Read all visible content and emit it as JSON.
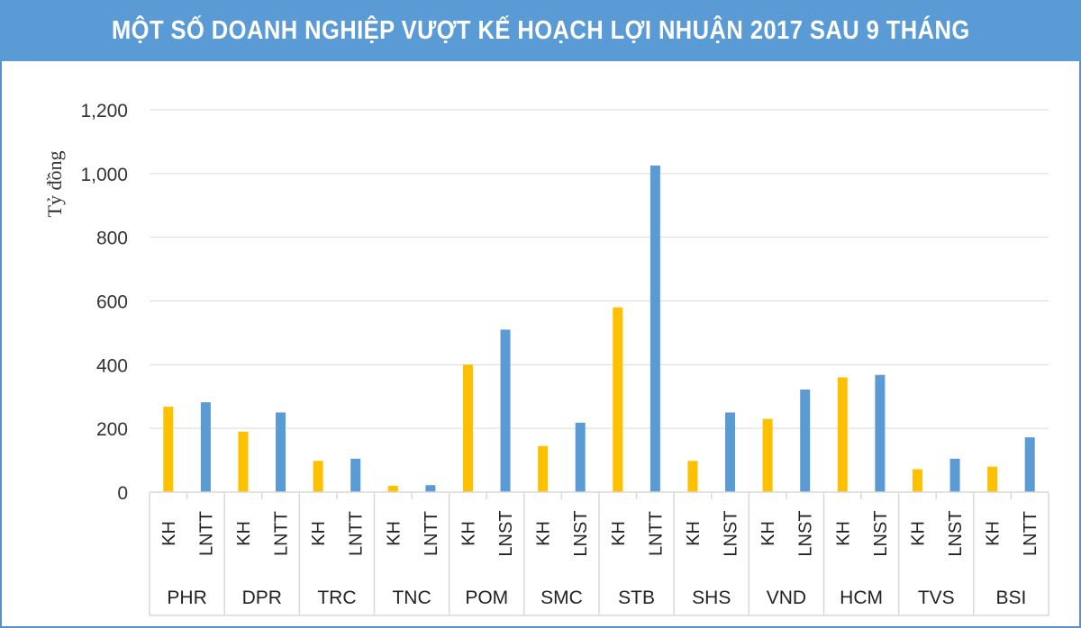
{
  "title": "MỘT SỐ DOANH NGHIỆP VƯỢT KẾ HOẠCH LỢI NHUẬN 2017 SAU 9 THÁNG",
  "colors": {
    "title_bg": "#5b9bd5",
    "plan_bar": "#ffc000",
    "actual_bar": "#5b9bd5",
    "grid": "#d9d9d9",
    "axis_text": "#333333"
  },
  "chart_data": {
    "type": "bar",
    "title": "MỘT SỐ DOANH NGHIỆP VƯỢT KẾ HOẠCH LỢI NHUẬN 2017 SAU 9 THÁNG",
    "ylabel": "Tỷ đồng",
    "xlabel": "",
    "ylim": [
      0,
      1200
    ],
    "yticks": [
      0,
      200,
      400,
      600,
      800,
      1000,
      1200
    ],
    "ytick_labels": [
      "0",
      "200",
      "400",
      "600",
      "800",
      "1,000",
      "1,200"
    ],
    "grid": true,
    "legend": "none",
    "groups": [
      {
        "company": "PHR",
        "bars": [
          {
            "label": "KH",
            "value": 268,
            "kind": "plan"
          },
          {
            "label": "LNTT",
            "value": 282,
            "kind": "actual"
          }
        ]
      },
      {
        "company": "DPR",
        "bars": [
          {
            "label": "KH",
            "value": 190,
            "kind": "plan"
          },
          {
            "label": "LNTT",
            "value": 250,
            "kind": "actual"
          }
        ]
      },
      {
        "company": "TRC",
        "bars": [
          {
            "label": "KH",
            "value": 98,
            "kind": "plan"
          },
          {
            "label": "LNTT",
            "value": 105,
            "kind": "actual"
          }
        ]
      },
      {
        "company": "TNC",
        "bars": [
          {
            "label": "KH",
            "value": 20,
            "kind": "plan"
          },
          {
            "label": "LNTT",
            "value": 22,
            "kind": "actual"
          }
        ]
      },
      {
        "company": "POM",
        "bars": [
          {
            "label": "KH",
            "value": 400,
            "kind": "plan"
          },
          {
            "label": "LNST",
            "value": 510,
            "kind": "actual"
          }
        ]
      },
      {
        "company": "SMC",
        "bars": [
          {
            "label": "KH",
            "value": 145,
            "kind": "plan"
          },
          {
            "label": "LNST",
            "value": 218,
            "kind": "actual"
          }
        ]
      },
      {
        "company": "STB",
        "bars": [
          {
            "label": "KH",
            "value": 580,
            "kind": "plan"
          },
          {
            "label": "LNTT",
            "value": 1025,
            "kind": "actual"
          }
        ]
      },
      {
        "company": "SHS",
        "bars": [
          {
            "label": "KH",
            "value": 98,
            "kind": "plan"
          },
          {
            "label": "LNST",
            "value": 250,
            "kind": "actual"
          }
        ]
      },
      {
        "company": "VND",
        "bars": [
          {
            "label": "KH",
            "value": 230,
            "kind": "plan"
          },
          {
            "label": "LNST",
            "value": 322,
            "kind": "actual"
          }
        ]
      },
      {
        "company": "HCM",
        "bars": [
          {
            "label": "KH",
            "value": 360,
            "kind": "plan"
          },
          {
            "label": "LNST",
            "value": 368,
            "kind": "actual"
          }
        ]
      },
      {
        "company": "TVS",
        "bars": [
          {
            "label": "KH",
            "value": 72,
            "kind": "plan"
          },
          {
            "label": "LNST",
            "value": 105,
            "kind": "actual"
          }
        ]
      },
      {
        "company": "BSI",
        "bars": [
          {
            "label": "KH",
            "value": 80,
            "kind": "plan"
          },
          {
            "label": "LNTT",
            "value": 172,
            "kind": "actual"
          }
        ]
      }
    ]
  }
}
